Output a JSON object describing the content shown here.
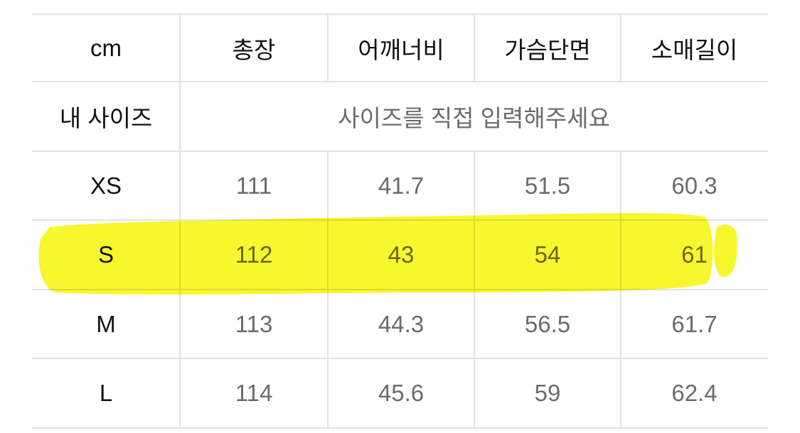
{
  "table": {
    "headers": [
      "cm",
      "총장",
      "어깨너비",
      "가슴단면",
      "소매길이"
    ],
    "my_size_label": "내 사이즈",
    "my_size_placeholder": "사이즈를 직접 입력해주세요",
    "rows": [
      {
        "size": "XS",
        "values": [
          "111",
          "41.7",
          "51.5",
          "60.3"
        ]
      },
      {
        "size": "S",
        "values": [
          "112",
          "43",
          "54",
          "61"
        ]
      },
      {
        "size": "M",
        "values": [
          "113",
          "44.3",
          "56.5",
          "61.7"
        ]
      },
      {
        "size": "L",
        "values": [
          "114",
          "45.6",
          "59",
          "62.4"
        ]
      }
    ],
    "highlighted_size": "S"
  },
  "colors": {
    "highlight": "#f7f51c",
    "grid": "#e3e3e6",
    "value_text": "#6b6b6b"
  }
}
